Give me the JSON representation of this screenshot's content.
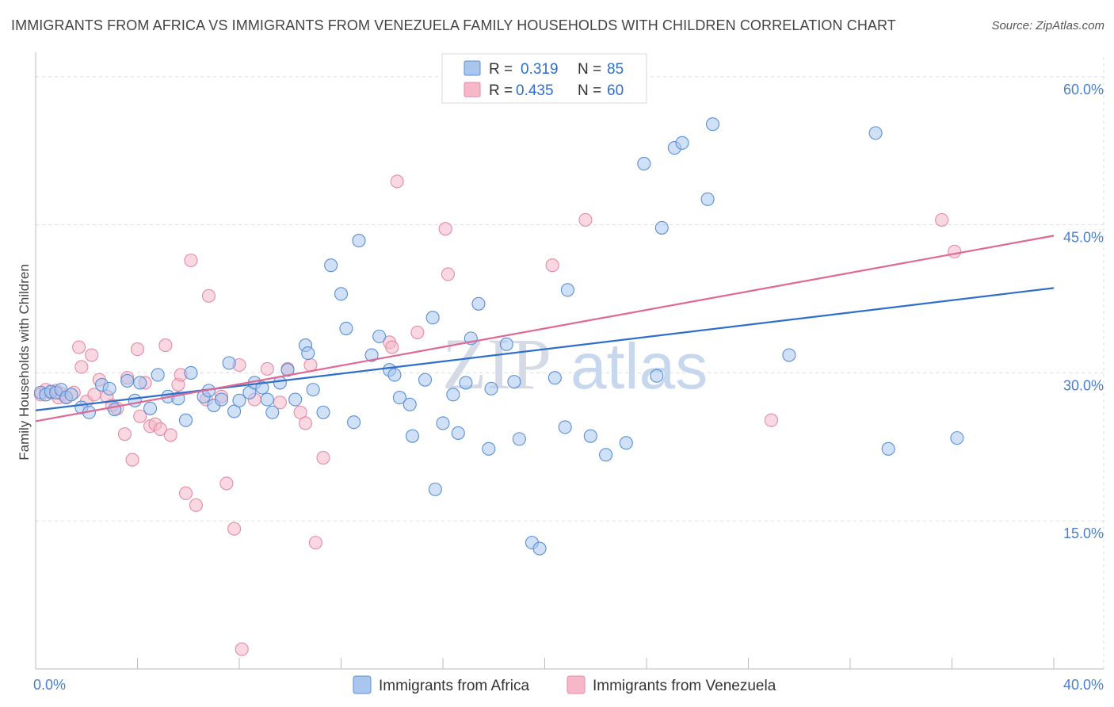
{
  "header": {
    "title": "IMMIGRANTS FROM AFRICA VS IMMIGRANTS FROM VENEZUELA FAMILY HOUSEHOLDS WITH CHILDREN CORRELATION CHART",
    "source": "Source: ZipAtlas.com"
  },
  "watermark": {
    "zip": "ZIP",
    "atlas": "atlas"
  },
  "colors": {
    "africa_fill": "#a9c6ee",
    "africa_stroke": "#5a8fd4",
    "africa_line": "#2f6fcc",
    "venezuela_fill": "#f6b8c9",
    "venezuela_stroke": "#e58aa6",
    "venezuela_line": "#e06892",
    "tick_label": "#4a7fd0",
    "grid": "#dddddd"
  },
  "legend": {
    "entries": [
      {
        "r_label": "R =",
        "r_value": "0.319",
        "n_label": "N =",
        "n_value": "85"
      },
      {
        "r_label": "R =",
        "r_value": "0.435",
        "n_label": "N =",
        "n_value": "60"
      }
    ]
  },
  "chart_data": {
    "type": "scatter",
    "title": "IMMIGRANTS FROM AFRICA VS IMMIGRANTS FROM VENEZUELA FAMILY HOUSEHOLDS WITH CHILDREN CORRELATION CHART",
    "xlabel": "",
    "ylabel": "Family Households with Children",
    "xlim": [
      0,
      40
    ],
    "ylim": [
      0,
      62
    ],
    "x_tick_labels": [
      "0.0%",
      "40.0%"
    ],
    "y_ticks": [
      15,
      30,
      45,
      60
    ],
    "y_tick_labels": [
      "15.0%",
      "30.0%",
      "45.0%",
      "60.0%"
    ],
    "grid": true,
    "legend_position": "top-center",
    "series": [
      {
        "name": "Immigrants from Africa",
        "r": 0.319,
        "n": 85,
        "trend": {
          "x": [
            0,
            40
          ],
          "y": [
            26.2,
            38.6
          ]
        },
        "points": [
          [
            0.2,
            28.0
          ],
          [
            0.4,
            27.8
          ],
          [
            0.6,
            28.1
          ],
          [
            0.8,
            28.0
          ],
          [
            1.0,
            28.3
          ],
          [
            1.2,
            27.5
          ],
          [
            1.4,
            27.8
          ],
          [
            1.8,
            26.5
          ],
          [
            2.1,
            26.0
          ],
          [
            2.6,
            28.8
          ],
          [
            2.9,
            28.4
          ],
          [
            3.1,
            26.3
          ],
          [
            3.6,
            29.2
          ],
          [
            3.9,
            27.2
          ],
          [
            4.1,
            29.0
          ],
          [
            4.5,
            26.4
          ],
          [
            4.8,
            29.8
          ],
          [
            5.2,
            27.6
          ],
          [
            5.6,
            27.4
          ],
          [
            5.9,
            25.2
          ],
          [
            6.1,
            30.0
          ],
          [
            6.6,
            27.6
          ],
          [
            6.8,
            28.2
          ],
          [
            7.0,
            26.7
          ],
          [
            7.3,
            27.3
          ],
          [
            7.6,
            31.0
          ],
          [
            7.8,
            26.1
          ],
          [
            8.0,
            27.2
          ],
          [
            8.4,
            28.0
          ],
          [
            8.6,
            29.0
          ],
          [
            8.9,
            28.5
          ],
          [
            9.1,
            27.3
          ],
          [
            9.3,
            26.0
          ],
          [
            9.6,
            29.0
          ],
          [
            9.9,
            30.3
          ],
          [
            10.2,
            27.3
          ],
          [
            10.6,
            32.8
          ],
          [
            10.7,
            32.0
          ],
          [
            10.9,
            28.3
          ],
          [
            11.3,
            26.0
          ],
          [
            11.6,
            40.9
          ],
          [
            12.0,
            38.0
          ],
          [
            12.2,
            34.5
          ],
          [
            12.5,
            25.0
          ],
          [
            12.7,
            43.4
          ],
          [
            13.2,
            31.8
          ],
          [
            13.5,
            33.7
          ],
          [
            13.9,
            30.3
          ],
          [
            14.1,
            29.8
          ],
          [
            14.3,
            27.5
          ],
          [
            14.7,
            26.8
          ],
          [
            14.8,
            23.6
          ],
          [
            15.3,
            29.3
          ],
          [
            15.6,
            35.6
          ],
          [
            15.7,
            18.2
          ],
          [
            16.0,
            24.9
          ],
          [
            16.4,
            27.8
          ],
          [
            16.6,
            23.9
          ],
          [
            16.9,
            29.0
          ],
          [
            17.1,
            33.5
          ],
          [
            17.4,
            37.0
          ],
          [
            17.8,
            22.3
          ],
          [
            17.9,
            28.4
          ],
          [
            18.5,
            32.9
          ],
          [
            18.8,
            29.1
          ],
          [
            19.0,
            23.3
          ],
          [
            19.5,
            12.8
          ],
          [
            19.8,
            12.2
          ],
          [
            20.4,
            29.5
          ],
          [
            20.9,
            38.4
          ],
          [
            20.8,
            24.5
          ],
          [
            21.8,
            23.6
          ],
          [
            22.4,
            21.7
          ],
          [
            23.2,
            22.9
          ],
          [
            23.9,
            51.2
          ],
          [
            24.4,
            29.7
          ],
          [
            24.6,
            44.7
          ],
          [
            25.1,
            52.8
          ],
          [
            25.4,
            53.3
          ],
          [
            26.4,
            47.6
          ],
          [
            26.6,
            55.2
          ],
          [
            29.6,
            31.8
          ],
          [
            33.0,
            54.3
          ],
          [
            33.5,
            22.3
          ],
          [
            36.2,
            23.4
          ]
        ]
      },
      {
        "name": "Immigrants from Venezuela",
        "r": 0.435,
        "n": 60,
        "trend": {
          "x": [
            0,
            40
          ],
          "y": [
            25.1,
            43.9
          ]
        },
        "points": [
          [
            0.2,
            27.8
          ],
          [
            0.4,
            28.3
          ],
          [
            0.6,
            28.0
          ],
          [
            0.8,
            28.2
          ],
          [
            0.9,
            27.5
          ],
          [
            1.0,
            27.9
          ],
          [
            1.2,
            27.6
          ],
          [
            1.5,
            28.0
          ],
          [
            1.7,
            32.6
          ],
          [
            1.8,
            30.6
          ],
          [
            2.0,
            27.1
          ],
          [
            2.2,
            31.8
          ],
          [
            2.3,
            27.8
          ],
          [
            2.5,
            29.3
          ],
          [
            2.8,
            27.6
          ],
          [
            3.0,
            26.7
          ],
          [
            3.2,
            26.4
          ],
          [
            3.6,
            29.5
          ],
          [
            3.5,
            23.8
          ],
          [
            3.8,
            21.2
          ],
          [
            4.0,
            32.4
          ],
          [
            4.1,
            25.6
          ],
          [
            4.3,
            29.0
          ],
          [
            4.5,
            24.6
          ],
          [
            4.7,
            24.8
          ],
          [
            4.9,
            24.3
          ],
          [
            5.1,
            32.8
          ],
          [
            5.3,
            23.7
          ],
          [
            5.6,
            28.8
          ],
          [
            5.7,
            29.8
          ],
          [
            5.9,
            17.8
          ],
          [
            6.1,
            41.4
          ],
          [
            6.3,
            16.6
          ],
          [
            6.7,
            27.3
          ],
          [
            6.8,
            37.8
          ],
          [
            7.3,
            27.6
          ],
          [
            7.5,
            18.8
          ],
          [
            7.8,
            14.2
          ],
          [
            8.0,
            30.8
          ],
          [
            8.1,
            2.0
          ],
          [
            8.6,
            27.3
          ],
          [
            9.1,
            30.4
          ],
          [
            9.6,
            27.0
          ],
          [
            9.9,
            30.4
          ],
          [
            10.4,
            26.0
          ],
          [
            10.6,
            24.9
          ],
          [
            10.8,
            30.8
          ],
          [
            11.0,
            12.8
          ],
          [
            11.3,
            21.4
          ],
          [
            13.9,
            33.1
          ],
          [
            14.0,
            32.6
          ],
          [
            14.2,
            49.4
          ],
          [
            15.0,
            34.1
          ],
          [
            16.1,
            44.6
          ],
          [
            16.2,
            40.0
          ],
          [
            20.3,
            40.9
          ],
          [
            21.6,
            45.5
          ],
          [
            28.9,
            25.2
          ],
          [
            35.6,
            45.5
          ],
          [
            36.1,
            42.3
          ]
        ]
      }
    ]
  }
}
